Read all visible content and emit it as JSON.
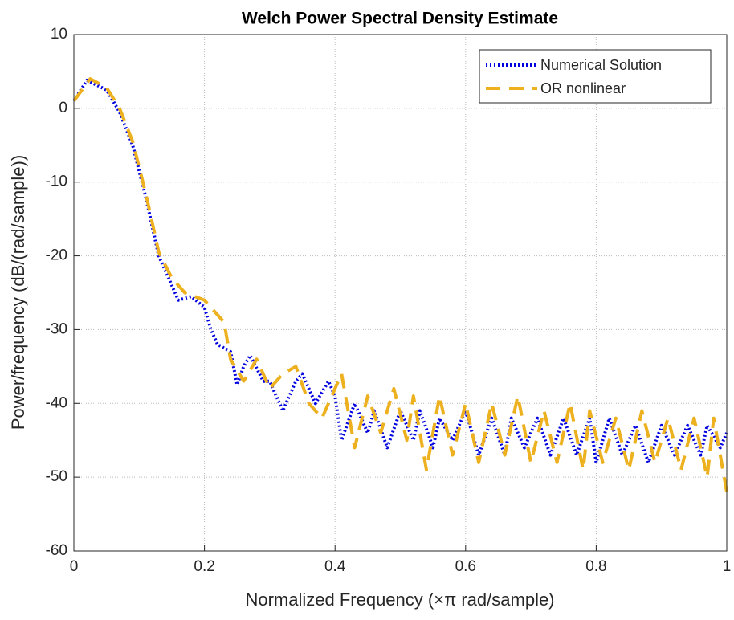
{
  "chart_data": {
    "type": "line",
    "title": "Welch Power Spectral Density Estimate",
    "xlabel": "Normalized Frequency  (×π rad/sample)",
    "ylabel": "Power/frequency (dB/(rad/sample))",
    "xlim": [
      0,
      1
    ],
    "xticks": [
      0,
      0.2,
      0.4,
      0.6,
      0.8,
      1
    ],
    "ylim": [
      -60,
      10
    ],
    "yticks": [
      -60,
      -50,
      -40,
      -30,
      -20,
      -10,
      0,
      10
    ],
    "grid": true,
    "legend": "upper right",
    "series": [
      {
        "name": "Numerical Solution",
        "color": "#0000e0",
        "dash": "dotted",
        "x": [
          0,
          0.02,
          0.05,
          0.07,
          0.09,
          0.11,
          0.13,
          0.15,
          0.16,
          0.18,
          0.2,
          0.21,
          0.22,
          0.24,
          0.25,
          0.26,
          0.27,
          0.29,
          0.3,
          0.32,
          0.34,
          0.35,
          0.37,
          0.39,
          0.4,
          0.41,
          0.43,
          0.45,
          0.46,
          0.48,
          0.5,
          0.52,
          0.53,
          0.55,
          0.56,
          0.58,
          0.6,
          0.62,
          0.64,
          0.66,
          0.67,
          0.69,
          0.71,
          0.73,
          0.75,
          0.77,
          0.79,
          0.8,
          0.82,
          0.84,
          0.86,
          0.88,
          0.9,
          0.92,
          0.94,
          0.96,
          0.97,
          0.99,
          1
        ],
        "values": [
          1,
          3.8,
          2.5,
          -0.5,
          -5,
          -12,
          -20,
          -24,
          -26,
          -25.5,
          -27,
          -30,
          -32,
          -33,
          -37.5,
          -35,
          -33.5,
          -37,
          -37,
          -41,
          -37,
          -36,
          -40,
          -37,
          -39,
          -45,
          -40,
          -44,
          -41,
          -46,
          -41,
          -45,
          -41,
          -46,
          -42,
          -45,
          -41,
          -47,
          -42,
          -47,
          -42,
          -46,
          -42,
          -47,
          -42,
          -47,
          -42,
          -48,
          -42,
          -47,
          -43,
          -48,
          -43,
          -47,
          -43,
          -47,
          -43,
          -46,
          -44
        ]
      },
      {
        "name": "OR nonlinear",
        "color": "#edb120",
        "dash": "dashed",
        "x": [
          0,
          0.025,
          0.05,
          0.07,
          0.09,
          0.11,
          0.13,
          0.15,
          0.17,
          0.2,
          0.23,
          0.24,
          0.26,
          0.28,
          0.3,
          0.32,
          0.34,
          0.36,
          0.38,
          0.41,
          0.43,
          0.45,
          0.47,
          0.49,
          0.51,
          0.52,
          0.54,
          0.56,
          0.58,
          0.6,
          0.62,
          0.64,
          0.66,
          0.68,
          0.7,
          0.72,
          0.74,
          0.76,
          0.78,
          0.79,
          0.81,
          0.83,
          0.85,
          0.87,
          0.89,
          0.91,
          0.93,
          0.95,
          0.97,
          0.98,
          1
        ],
        "values": [
          1,
          4,
          2.8,
          0,
          -4.5,
          -11.5,
          -19.5,
          -23,
          -25,
          -26,
          -29,
          -34,
          -37,
          -34,
          -38,
          -36,
          -35,
          -40,
          -42,
          -36,
          -46,
          -39,
          -44,
          -38,
          -45,
          -39,
          -49,
          -39,
          -47,
          -40,
          -48,
          -40,
          -47,
          -39,
          -48,
          -41,
          -48,
          -40,
          -49,
          -41,
          -48,
          -42,
          -49,
          -41,
          -48,
          -42,
          -49,
          -42,
          -50,
          -42,
          -52
        ]
      }
    ]
  }
}
